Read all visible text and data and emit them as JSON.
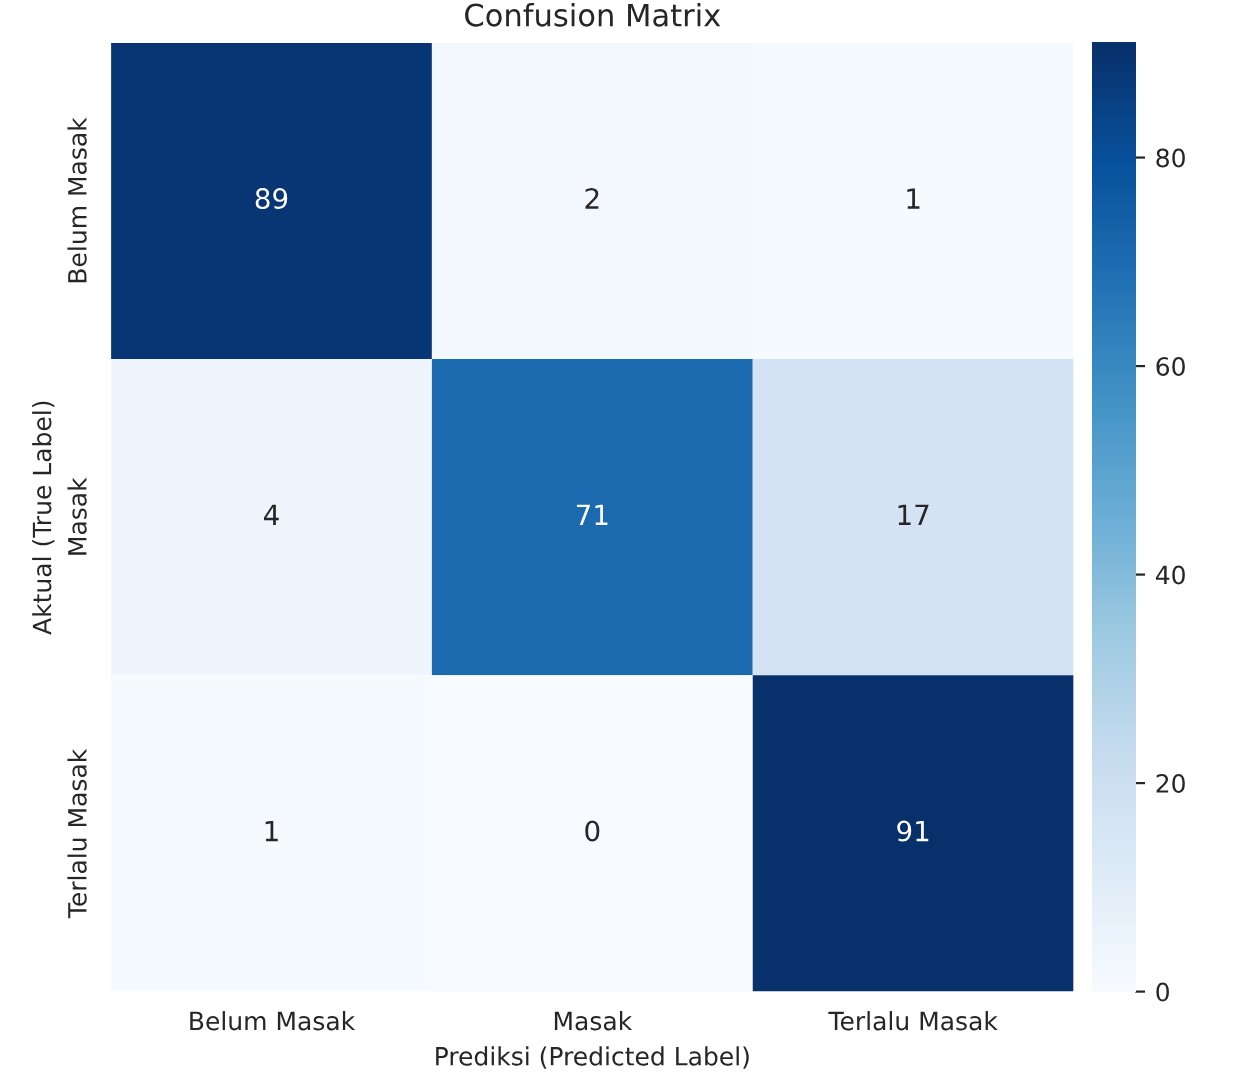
{
  "chart_data": {
    "type": "heatmap",
    "title": "Confusion Matrix",
    "xlabel": "Prediksi (Predicted Label)",
    "ylabel": "Aktual (True Label)",
    "categories": [
      "Belum Masak",
      "Masak",
      "Terlalu Masak"
    ],
    "y_categories": [
      "Belum Masak",
      "Masak",
      "Terlalu Masak"
    ],
    "cells": [
      [
        89,
        2,
        1
      ],
      [
        4,
        71,
        17
      ],
      [
        1,
        0,
        91
      ]
    ],
    "data_labels": true,
    "clim": [
      0,
      91
    ],
    "cticks": [
      0,
      20,
      40,
      60,
      80
    ]
  }
}
